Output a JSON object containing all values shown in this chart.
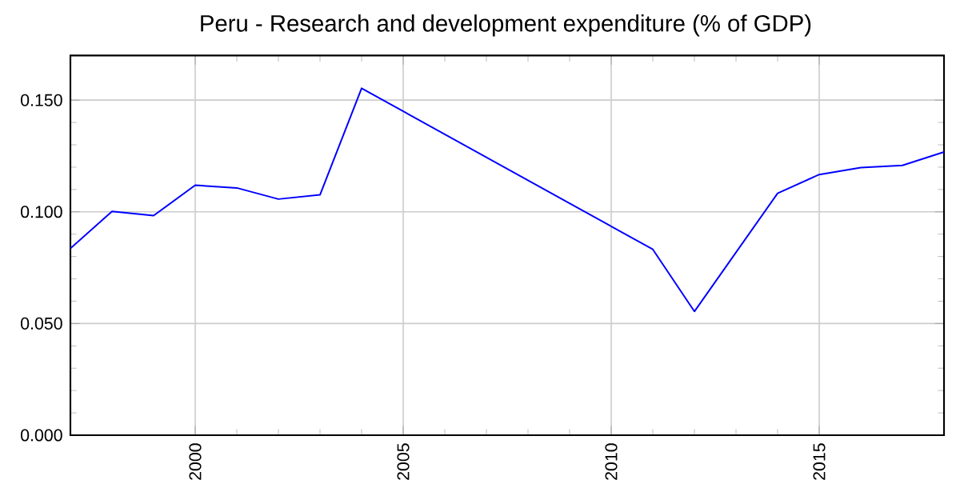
{
  "chart_data": {
    "type": "line",
    "title": "Peru - Research and development expenditure (% of GDP)",
    "x": [
      1997,
      1998,
      1999,
      2000,
      2001,
      2002,
      2003,
      2004,
      2011,
      2012,
      2014,
      2015,
      2016,
      2017,
      2018
    ],
    "series": [
      {
        "color": "#0000ff",
        "values": [
          0.0836,
          0.1002,
          0.0983,
          0.1119,
          0.1107,
          0.1057,
          0.1076,
          0.1553,
          0.0832,
          0.0554,
          0.1083,
          0.1167,
          0.1198,
          0.1208,
          0.1268
        ]
      }
    ],
    "xlim": [
      1997,
      2018
    ],
    "ylim": [
      0,
      0.17
    ],
    "xticks": [
      2000,
      2005,
      2010,
      2015
    ],
    "yticks": [
      {
        "value": 0,
        "label": "0.000"
      },
      {
        "value": 0.05,
        "label": "0.050"
      },
      {
        "value": 0.1,
        "label": "0.100"
      },
      {
        "value": 0.15,
        "label": "0.150"
      }
    ],
    "grid": true,
    "marker": "none",
    "line_style": "solid"
  }
}
